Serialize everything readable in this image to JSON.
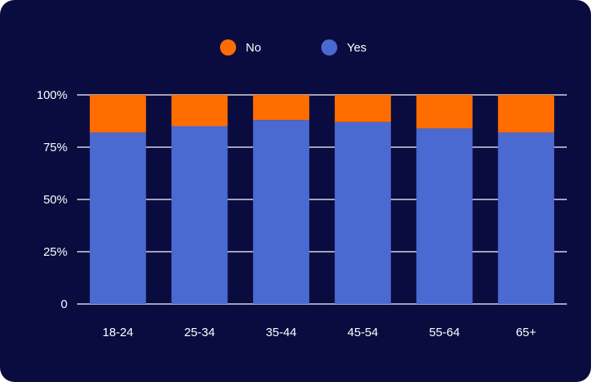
{
  "chart_data": {
    "type": "bar",
    "stacked": true,
    "categories": [
      "18-24",
      "25-34",
      "35-44",
      "45-54",
      "55-64",
      "65+"
    ],
    "series": [
      {
        "name": "Yes",
        "color": "#4a6ad1",
        "values": [
          82,
          85,
          88,
          87,
          84,
          82
        ]
      },
      {
        "name": "No",
        "color": "#ff6d00",
        "values": [
          18,
          15,
          12,
          13,
          16,
          18
        ]
      }
    ],
    "legend_order": [
      "No",
      "Yes"
    ],
    "ylim": [
      0,
      100
    ],
    "yticks": [
      0,
      25,
      50,
      75,
      100
    ],
    "ytick_labels": [
      "0",
      "25%",
      "50%",
      "75%",
      "100%"
    ],
    "grid": true,
    "legend_position": "top",
    "title": "",
    "xlabel": "",
    "ylabel": ""
  },
  "colors": {
    "background": "#0a0c40",
    "gridline": "#ffffff",
    "text": "#ffffff"
  }
}
